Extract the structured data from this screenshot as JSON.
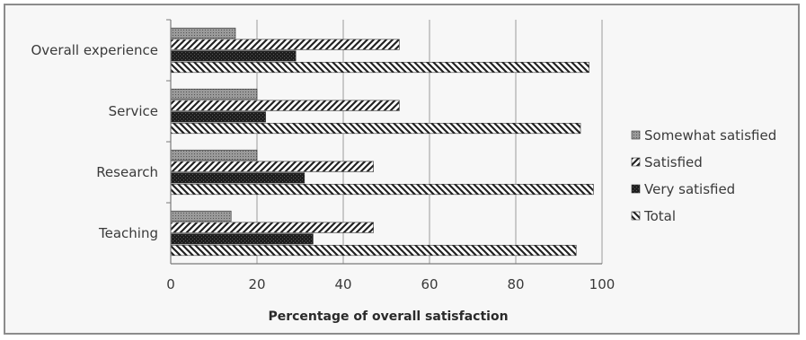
{
  "chart_data": {
    "type": "bar",
    "orientation": "horizontal",
    "categories": [
      "Overall experience",
      "Service",
      "Research",
      "Teaching"
    ],
    "series": [
      {
        "name": "Somewhat satisfied",
        "values": [
          15,
          20,
          20,
          14
        ],
        "color": "#8a8a8a",
        "pattern": "dotted-solid"
      },
      {
        "name": "Satisfied",
        "values": [
          53,
          53,
          47,
          47
        ],
        "color": "#222222",
        "pattern": "forward-diagonal"
      },
      {
        "name": "Very satisfied",
        "values": [
          29,
          22,
          31,
          33
        ],
        "color": "#1e1e1e",
        "pattern": "dark-checker"
      },
      {
        "name": "Total",
        "values": [
          97,
          95,
          98,
          94
        ],
        "color": "#222222",
        "pattern": "backward-diagonal"
      }
    ],
    "xlabel": "Percentage of overall satisfaction",
    "ylabel": "",
    "xlim": [
      0,
      100
    ],
    "xticks": [
      0,
      20,
      40,
      60,
      80,
      100
    ],
    "grid": true,
    "legend": "right"
  }
}
